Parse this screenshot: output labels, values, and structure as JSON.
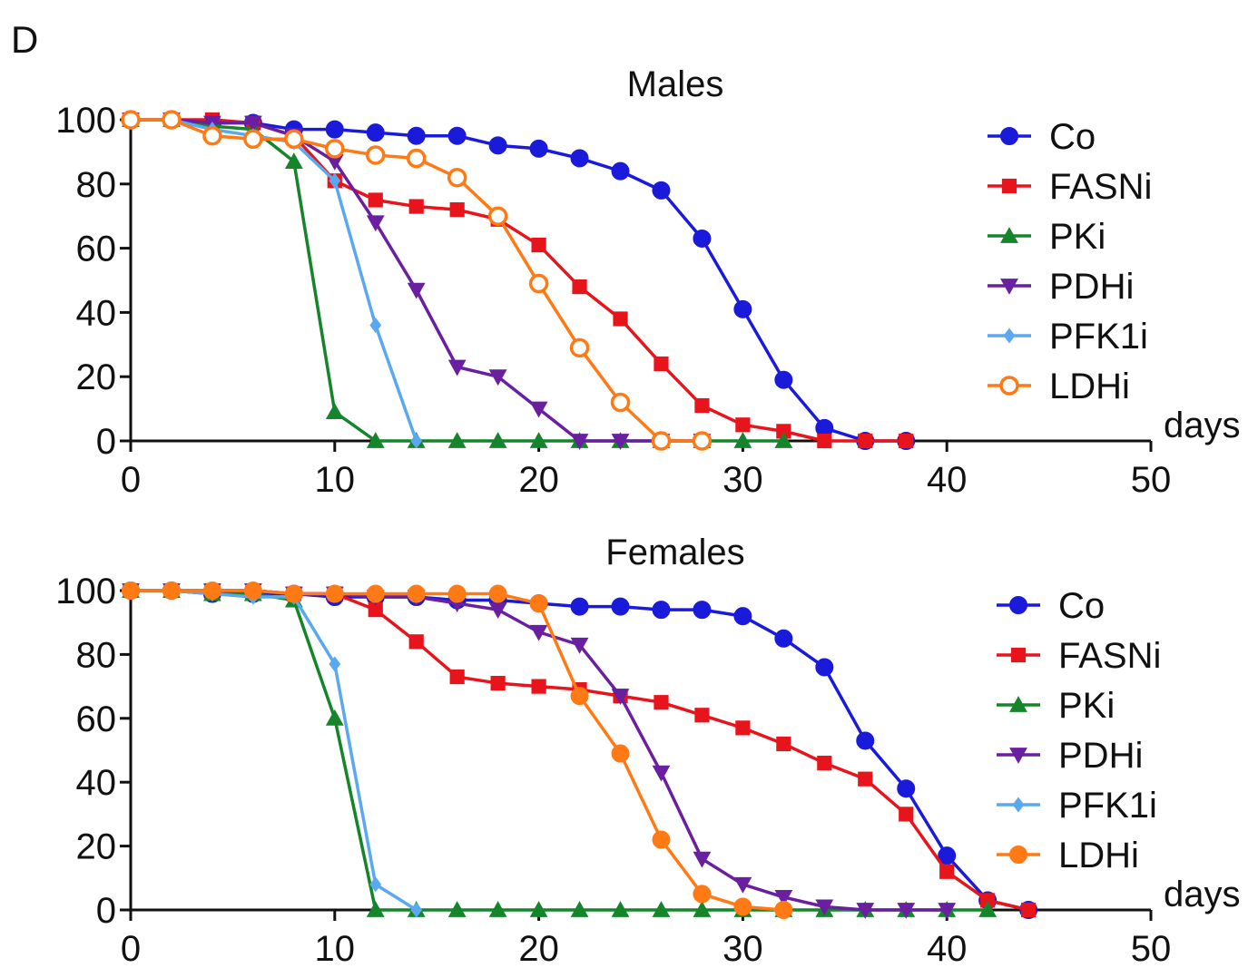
{
  "panel_label": "D",
  "chart_data": [
    {
      "type": "line",
      "title": "Males",
      "xlabel": "days",
      "ylabel": "",
      "xlim": [
        0,
        50
      ],
      "ylim": [
        0,
        100
      ],
      "xticks": [
        0,
        10,
        20,
        30,
        40,
        50
      ],
      "yticks": [
        0,
        20,
        40,
        60,
        80,
        100
      ],
      "legend_position": "right",
      "grid": false,
      "series": [
        {
          "name": "Co",
          "color": "#1a1adb",
          "marker": "circle",
          "x": [
            0,
            2,
            4,
            6,
            8,
            10,
            12,
            14,
            16,
            18,
            20,
            22,
            24,
            26,
            28,
            30,
            32,
            34,
            36,
            38
          ],
          "y": [
            100,
            100,
            99,
            99,
            97,
            97,
            96,
            95,
            95,
            92,
            91,
            88,
            84,
            78,
            63,
            41,
            19,
            4,
            0,
            0
          ]
        },
        {
          "name": "FASNi",
          "color": "#e8141c",
          "marker": "square",
          "x": [
            0,
            2,
            4,
            6,
            8,
            10,
            12,
            14,
            16,
            18,
            20,
            22,
            24,
            26,
            28,
            30,
            32,
            34,
            36,
            38
          ],
          "y": [
            100,
            100,
            100,
            99,
            95,
            81,
            75,
            73,
            72,
            69,
            61,
            48,
            38,
            24,
            11,
            5,
            3,
            0,
            0,
            0
          ]
        },
        {
          "name": "PKi",
          "color": "#15852b",
          "marker": "triangle-up",
          "x": [
            0,
            2,
            4,
            6,
            8,
            10,
            12,
            14,
            16,
            18,
            20,
            22,
            24,
            26,
            28,
            30,
            32
          ],
          "y": [
            100,
            100,
            98,
            97,
            87,
            9,
            0,
            0,
            0,
            0,
            0,
            0,
            0,
            0,
            0,
            0,
            0
          ]
        },
        {
          "name": "PDHi",
          "color": "#6a1fa0",
          "marker": "triangle-down",
          "x": [
            0,
            2,
            4,
            6,
            8,
            10,
            12,
            14,
            16,
            18,
            20,
            22,
            24,
            26,
            28
          ],
          "y": [
            100,
            100,
            99,
            99,
            95,
            87,
            68,
            47,
            23,
            20,
            10,
            0,
            0,
            0,
            0
          ]
        },
        {
          "name": "PFK1i",
          "color": "#5aa9f0",
          "marker": "diamond",
          "x": [
            0,
            2,
            4,
            6,
            8,
            10,
            12,
            14
          ],
          "y": [
            100,
            100,
            97,
            95,
            93,
            81,
            36,
            0
          ]
        },
        {
          "name": "LDHi",
          "color": "#ff7a14",
          "marker": "open-circle",
          "x": [
            0,
            2,
            4,
            6,
            8,
            10,
            12,
            14,
            16,
            18,
            20,
            22,
            24,
            26,
            28
          ],
          "y": [
            100,
            100,
            95,
            94,
            94,
            91,
            89,
            88,
            82,
            70,
            49,
            29,
            12,
            0,
            0
          ]
        }
      ]
    },
    {
      "type": "line",
      "title": "Females",
      "xlabel": "days",
      "ylabel": "",
      "xlim": [
        0,
        50
      ],
      "ylim": [
        0,
        100
      ],
      "xticks": [
        0,
        10,
        20,
        30,
        40,
        50
      ],
      "yticks": [
        0,
        20,
        40,
        60,
        80,
        100
      ],
      "legend_position": "right",
      "grid": false,
      "series": [
        {
          "name": "Co",
          "color": "#1a1adb",
          "marker": "circle",
          "x": [
            0,
            2,
            4,
            6,
            8,
            10,
            12,
            14,
            16,
            18,
            20,
            22,
            24,
            26,
            28,
            30,
            32,
            34,
            36,
            38,
            40,
            42,
            44
          ],
          "y": [
            100,
            100,
            99,
            99,
            99,
            98,
            98,
            98,
            97,
            97,
            96,
            95,
            95,
            94,
            94,
            92,
            85,
            76,
            53,
            38,
            17,
            3,
            0
          ]
        },
        {
          "name": "FASNi",
          "color": "#e8141c",
          "marker": "square",
          "x": [
            0,
            2,
            4,
            6,
            8,
            10,
            12,
            14,
            16,
            18,
            20,
            22,
            24,
            26,
            28,
            30,
            32,
            34,
            36,
            38,
            40,
            42,
            44
          ],
          "y": [
            100,
            100,
            100,
            100,
            99,
            99,
            94,
            84,
            73,
            71,
            70,
            69,
            67,
            65,
            61,
            57,
            52,
            46,
            41,
            30,
            12,
            3,
            0
          ]
        },
        {
          "name": "PKi",
          "color": "#15852b",
          "marker": "triangle-up",
          "x": [
            0,
            2,
            4,
            6,
            8,
            10,
            12,
            14,
            16,
            18,
            20,
            22,
            24,
            26,
            28,
            30,
            32,
            34,
            36,
            38,
            40,
            42
          ],
          "y": [
            100,
            100,
            99,
            99,
            97,
            60,
            0,
            0,
            0,
            0,
            0,
            0,
            0,
            0,
            0,
            0,
            0,
            0,
            0,
            0,
            0,
            0
          ]
        },
        {
          "name": "PDHi",
          "color": "#6a1fa0",
          "marker": "triangle-down",
          "x": [
            0,
            2,
            4,
            6,
            8,
            10,
            12,
            14,
            16,
            18,
            20,
            22,
            24,
            26,
            28,
            30,
            32,
            34,
            36,
            38,
            40
          ],
          "y": [
            100,
            100,
            100,
            100,
            99,
            99,
            98,
            98,
            96,
            94,
            87,
            83,
            67,
            43,
            16,
            8,
            4,
            1,
            0,
            0,
            0
          ]
        },
        {
          "name": "PFK1i",
          "color": "#5aa9f0",
          "marker": "diamond",
          "x": [
            0,
            2,
            4,
            6,
            8,
            10,
            12,
            14
          ],
          "y": [
            100,
            100,
            99,
            98,
            98,
            77,
            8,
            0
          ]
        },
        {
          "name": "LDHi",
          "color": "#ff7a14",
          "marker": "circle",
          "x": [
            0,
            2,
            4,
            6,
            8,
            10,
            12,
            14,
            16,
            18,
            20,
            22,
            24,
            26,
            28,
            30,
            32
          ],
          "y": [
            100,
            100,
            100,
            100,
            99,
            99,
            99,
            99,
            99,
            99,
            96,
            67,
            49,
            22,
            5,
            1,
            0
          ]
        }
      ]
    }
  ]
}
